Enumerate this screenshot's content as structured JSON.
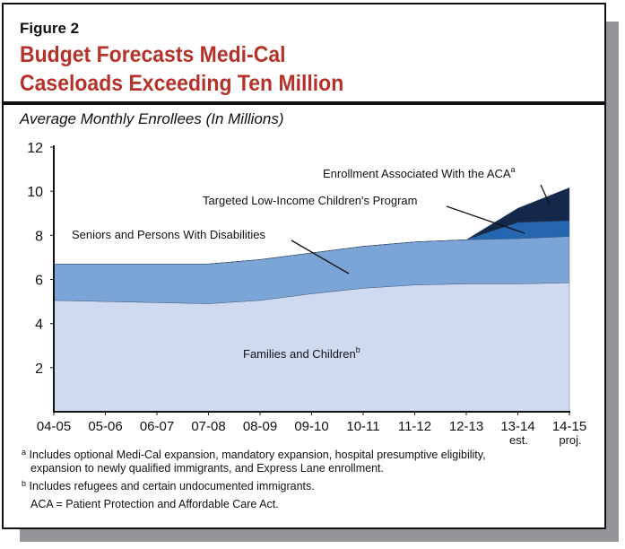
{
  "figure_label": "Figure 2",
  "title_line1": "Budget Forecasts Medi-Cal",
  "title_line2": "Caseloads Exceeding Ten Million",
  "subtitle": "Average Monthly Enrollees (In Millions)",
  "chart_data": {
    "type": "area",
    "stacked": true,
    "categories": [
      "04-05",
      "05-06",
      "06-07",
      "07-08",
      "08-09",
      "09-10",
      "10-11",
      "11-12",
      "12-13",
      "13-14",
      "14-15"
    ],
    "category_sublabels": [
      "",
      "",
      "",
      "",
      "",
      "",
      "",
      "",
      "",
      "est.",
      "proj."
    ],
    "ylim": [
      0,
      12
    ],
    "yticks": [
      2,
      4,
      6,
      8,
      10,
      12
    ],
    "grid": false,
    "series": [
      {
        "name": "Families and Children",
        "superscript": "b",
        "color": "#cfdaf0",
        "values": [
          5.05,
          5.0,
          4.95,
          4.9,
          5.05,
          5.35,
          5.6,
          5.75,
          5.8,
          5.8,
          5.85
        ]
      },
      {
        "name": "Seniors and Persons With Disabilities",
        "color": "#7ba5d6",
        "values": [
          1.65,
          1.7,
          1.75,
          1.8,
          1.85,
          1.85,
          1.9,
          1.95,
          2.0,
          2.05,
          2.1
        ]
      },
      {
        "name": "Targeted Low-Income Children's Program",
        "color": "#2566b0",
        "values": [
          0,
          0,
          0,
          0,
          0,
          0,
          0,
          0,
          0,
          0.73,
          0.71
        ]
      },
      {
        "name": "Enrollment Associated With the ACA",
        "superscript": "a",
        "color": "#14284b",
        "values": [
          0,
          0,
          0,
          0,
          0,
          0,
          0,
          0,
          0,
          0.65,
          1.5
        ]
      }
    ]
  },
  "footnotes": {
    "a_mark": "a",
    "a_text": "Includes optional Medi-Cal expansion, mandatory expansion, hospital presumptive eligibility,",
    "a_text2": "expansion to newly qualified immigrants, and Express Lane enrollment.",
    "b_mark": "b",
    "b_text": "Includes refugees and certain undocumented immigrants.",
    "aca": "ACA = Patient Protection and Affordable Care Act."
  }
}
